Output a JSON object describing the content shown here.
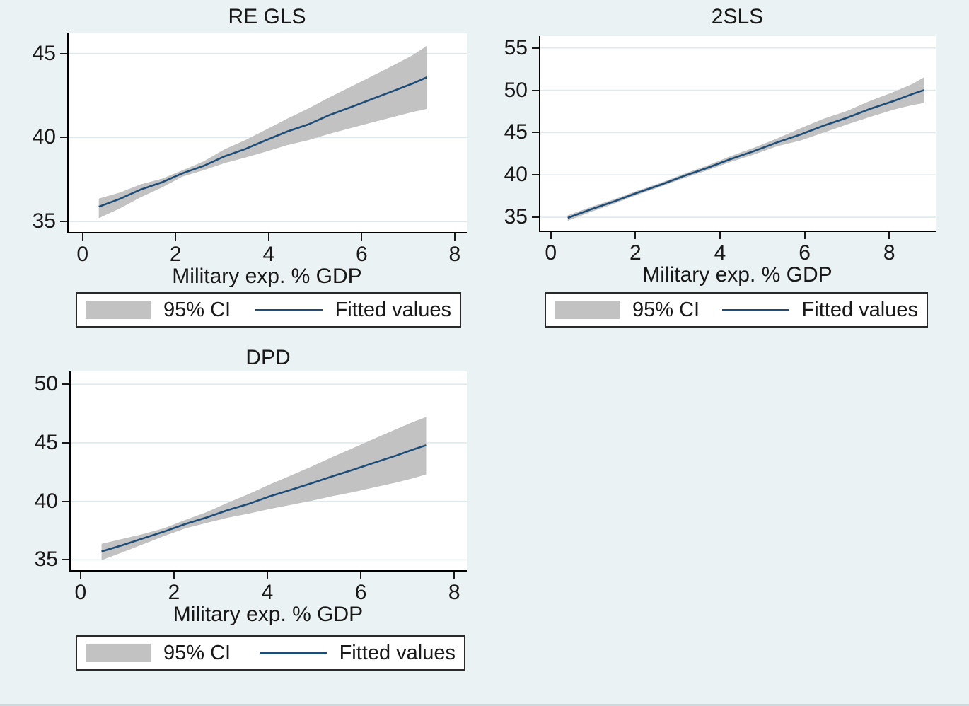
{
  "page": {
    "background": "#eaf2f3",
    "plot_background": "#ffffff",
    "text_color": "#181818"
  },
  "colors": {
    "band": "#c2c2c2",
    "line": "#1d4d77",
    "grid": "#dfeaee",
    "axis": "#000000",
    "legend_border": "#2a2a2a",
    "legend_background": "#ffffff",
    "bottom_edge": "#cdd9dc"
  },
  "legend": {
    "ci_label": "95% CI",
    "fit_label": "Fitted values"
  },
  "chart_data": [
    {
      "type": "line",
      "title": "RE GLS",
      "xlabel": "Military exp. % GDP",
      "xlim": [
        -0.33,
        8.26
      ],
      "ylim": [
        34.3,
        46.2
      ],
      "xticks": [
        0,
        2,
        4,
        6,
        8
      ],
      "yticks": [
        35,
        40,
        45
      ],
      "grid": "horizontal",
      "legend_position": "bottom",
      "series": [
        {
          "name": "95% CI",
          "type": "band",
          "x": [
            0.35,
            0.8,
            1.25,
            1.7,
            2.15,
            2.6,
            3.05,
            3.5,
            3.95,
            4.4,
            4.85,
            5.3,
            5.75,
            6.2,
            6.65,
            7.1,
            7.4
          ],
          "lo": [
            35.21,
            35.78,
            36.45,
            37.02,
            37.68,
            38.05,
            38.48,
            38.81,
            39.17,
            39.55,
            39.84,
            40.22,
            40.55,
            40.88,
            41.2,
            41.52,
            41.7
          ],
          "hi": [
            36.37,
            36.73,
            37.22,
            37.55,
            38.05,
            38.58,
            39.3,
            39.85,
            40.48,
            41.12,
            41.72,
            42.38,
            43.0,
            43.62,
            44.25,
            44.9,
            45.45
          ]
        },
        {
          "name": "Fitted values",
          "type": "line",
          "x": [
            0.35,
            0.8,
            1.25,
            1.7,
            2.15,
            2.6,
            3.05,
            3.5,
            3.95,
            4.4,
            4.85,
            5.3,
            5.75,
            6.2,
            6.65,
            7.1,
            7.4
          ],
          "y": [
            35.89,
            36.35,
            36.91,
            37.33,
            37.88,
            38.31,
            38.88,
            39.32,
            39.85,
            40.36,
            40.78,
            41.33,
            41.79,
            42.27,
            42.74,
            43.22,
            43.58
          ]
        }
      ]
    },
    {
      "type": "line",
      "title": "2SLS",
      "xlabel": "Military exp. % GDP",
      "xlim": [
        -0.28,
        9.1
      ],
      "ylim": [
        33.25,
        56.4
      ],
      "xticks": [
        0,
        2,
        4,
        6,
        8
      ],
      "yticks": [
        35,
        40,
        45,
        50,
        55
      ],
      "grid": "horizontal",
      "legend_position": "bottom",
      "series": [
        {
          "name": "95% CI",
          "type": "band",
          "x": [
            0.4,
            0.95,
            1.5,
            2.05,
            2.6,
            3.15,
            3.7,
            4.25,
            4.8,
            5.35,
            5.9,
            6.45,
            7.0,
            7.55,
            8.1,
            8.55,
            8.83
          ],
          "lo": [
            34.58,
            35.63,
            36.6,
            37.66,
            38.61,
            39.63,
            40.53,
            41.53,
            42.4,
            43.38,
            44.05,
            45.0,
            45.95,
            46.85,
            47.7,
            48.25,
            48.5
          ],
          "hi": [
            35.22,
            36.22,
            37.13,
            38.14,
            39.07,
            40.13,
            41.11,
            42.21,
            43.2,
            44.3,
            45.5,
            46.65,
            47.55,
            48.75,
            49.8,
            50.75,
            51.55
          ]
        },
        {
          "name": "Fitted values",
          "type": "line",
          "x": [
            0.4,
            0.95,
            1.5,
            2.05,
            2.6,
            3.15,
            3.7,
            4.25,
            4.8,
            5.35,
            5.9,
            6.45,
            7.0,
            7.55,
            8.1,
            8.55,
            8.83
          ],
          "y": [
            34.92,
            35.93,
            36.87,
            37.9,
            38.84,
            39.88,
            40.82,
            41.87,
            42.8,
            43.84,
            44.77,
            45.82,
            46.75,
            47.8,
            48.72,
            49.56,
            50.03
          ]
        }
      ]
    },
    {
      "type": "line",
      "title": "DPD",
      "xlabel": "Military exp. % GDP",
      "xlim": [
        -0.24,
        8.27
      ],
      "ylim": [
        34.0,
        51.1
      ],
      "xticks": [
        0,
        2,
        4,
        6,
        8
      ],
      "yticks": [
        35,
        40,
        45,
        50
      ],
      "grid": "horizontal",
      "legend_position": "bottom",
      "series": [
        {
          "name": "95% CI",
          "type": "band",
          "x": [
            0.45,
            0.9,
            1.35,
            1.8,
            2.25,
            2.7,
            3.15,
            3.6,
            4.05,
            4.5,
            4.95,
            5.4,
            5.85,
            6.3,
            6.75,
            7.1,
            7.4
          ],
          "lo": [
            34.97,
            35.65,
            36.35,
            37.05,
            37.7,
            38.15,
            38.6,
            38.95,
            39.35,
            39.7,
            40.05,
            40.45,
            40.8,
            41.2,
            41.6,
            41.95,
            42.3
          ],
          "hi": [
            36.37,
            36.8,
            37.22,
            37.72,
            38.42,
            39.08,
            39.88,
            40.62,
            41.45,
            42.2,
            42.98,
            43.8,
            44.58,
            45.38,
            46.15,
            46.75,
            47.2
          ]
        },
        {
          "name": "Fitted values",
          "type": "line",
          "x": [
            0.45,
            0.9,
            1.35,
            1.8,
            2.25,
            2.7,
            3.15,
            3.6,
            4.05,
            4.5,
            4.95,
            5.4,
            5.85,
            6.3,
            6.75,
            7.1,
            7.4
          ],
          "y": [
            35.72,
            36.26,
            36.85,
            37.43,
            38.07,
            38.62,
            39.25,
            39.78,
            40.43,
            40.98,
            41.55,
            42.15,
            42.72,
            43.32,
            43.9,
            44.4,
            44.8
          ]
        }
      ]
    }
  ]
}
